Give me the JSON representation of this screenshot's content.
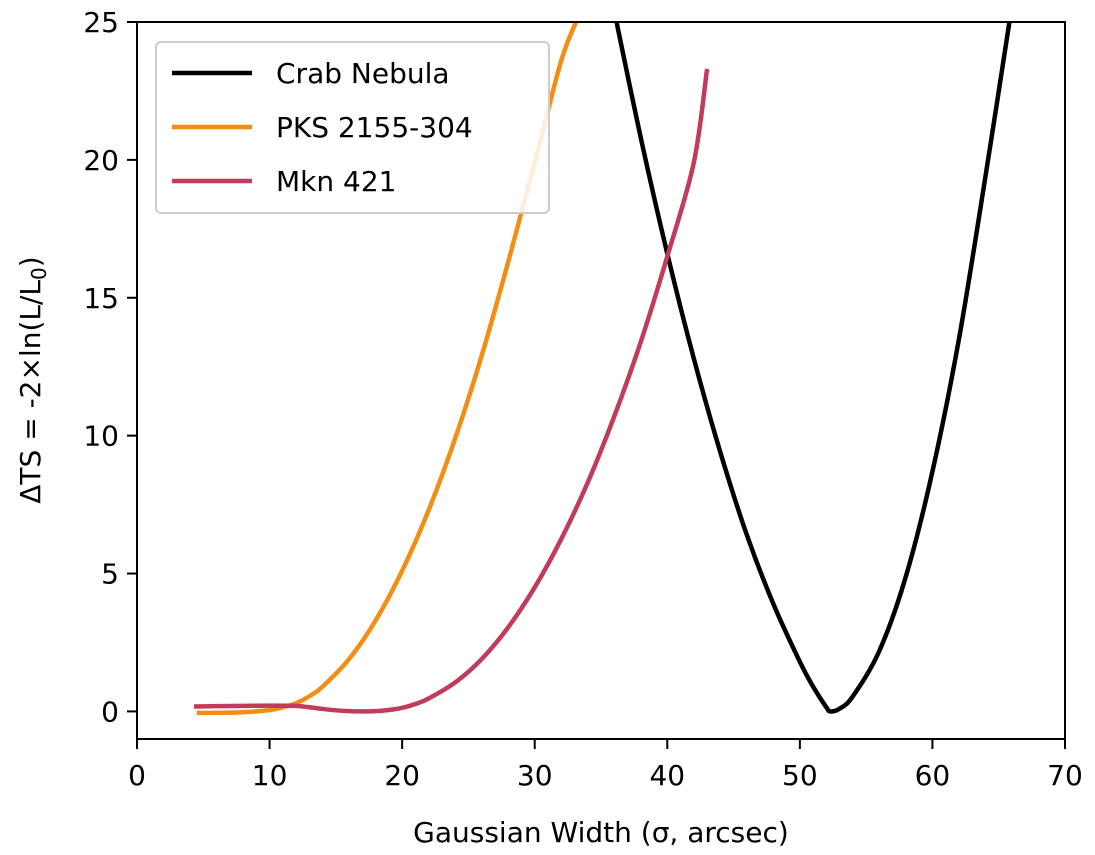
{
  "chart_data": {
    "type": "line",
    "xlabel": "Gaussian Width (σ, arcsec)",
    "ylabel_parts": {
      "main": "ΔTS = -2×ln(L/L",
      "sub": "0",
      "close": ")"
    },
    "xlim": [
      0,
      70
    ],
    "ylim": [
      -1,
      25
    ],
    "xticks": [
      0,
      10,
      20,
      30,
      40,
      50,
      60,
      70
    ],
    "yticks": [
      0,
      5,
      10,
      15,
      20,
      25
    ],
    "grid": false,
    "legend_position": "top-left",
    "series": [
      {
        "name": "Crab Nebula",
        "color": "#000000",
        "x": [
          36,
          38,
          40,
          42,
          44,
          46,
          48,
          50,
          51,
          52,
          52.3,
          53,
          54,
          56,
          58,
          60,
          62,
          64,
          66
        ],
        "y": [
          25.4,
          20.8,
          16.6,
          12.8,
          9.4,
          6.4,
          3.9,
          1.8,
          0.9,
          0.15,
          0.0,
          0.1,
          0.55,
          2.2,
          4.9,
          8.7,
          13.5,
          19.4,
          25.6
        ]
      },
      {
        "name": "PKS 2155-304",
        "color": "#f28e16",
        "x": [
          4.5,
          6,
          8,
          10,
          11,
          12,
          13,
          14,
          16,
          18,
          20,
          22,
          24,
          26,
          28,
          30,
          32,
          33.3
        ],
        "y": [
          -0.05,
          -0.05,
          -0.03,
          0.05,
          0.15,
          0.3,
          0.55,
          0.9,
          1.9,
          3.3,
          5.1,
          7.3,
          9.9,
          12.9,
          16.3,
          19.9,
          23.6,
          25.2
        ]
      },
      {
        "name": "Mkn 421",
        "color": "#c03c5a",
        "x": [
          4.3,
          6,
          8,
          10,
          12,
          13,
          14,
          15,
          16,
          17,
          18,
          19,
          20,
          21,
          22,
          24,
          26,
          28,
          30,
          32,
          34,
          36,
          38,
          40,
          42,
          43
        ],
        "y": [
          0.18,
          0.19,
          0.2,
          0.21,
          0.2,
          0.15,
          0.09,
          0.04,
          0.01,
          0.0,
          0.01,
          0.05,
          0.13,
          0.27,
          0.47,
          1.05,
          1.9,
          3.05,
          4.5,
          6.25,
          8.3,
          10.7,
          13.4,
          16.5,
          19.9,
          23.3
        ]
      }
    ]
  }
}
